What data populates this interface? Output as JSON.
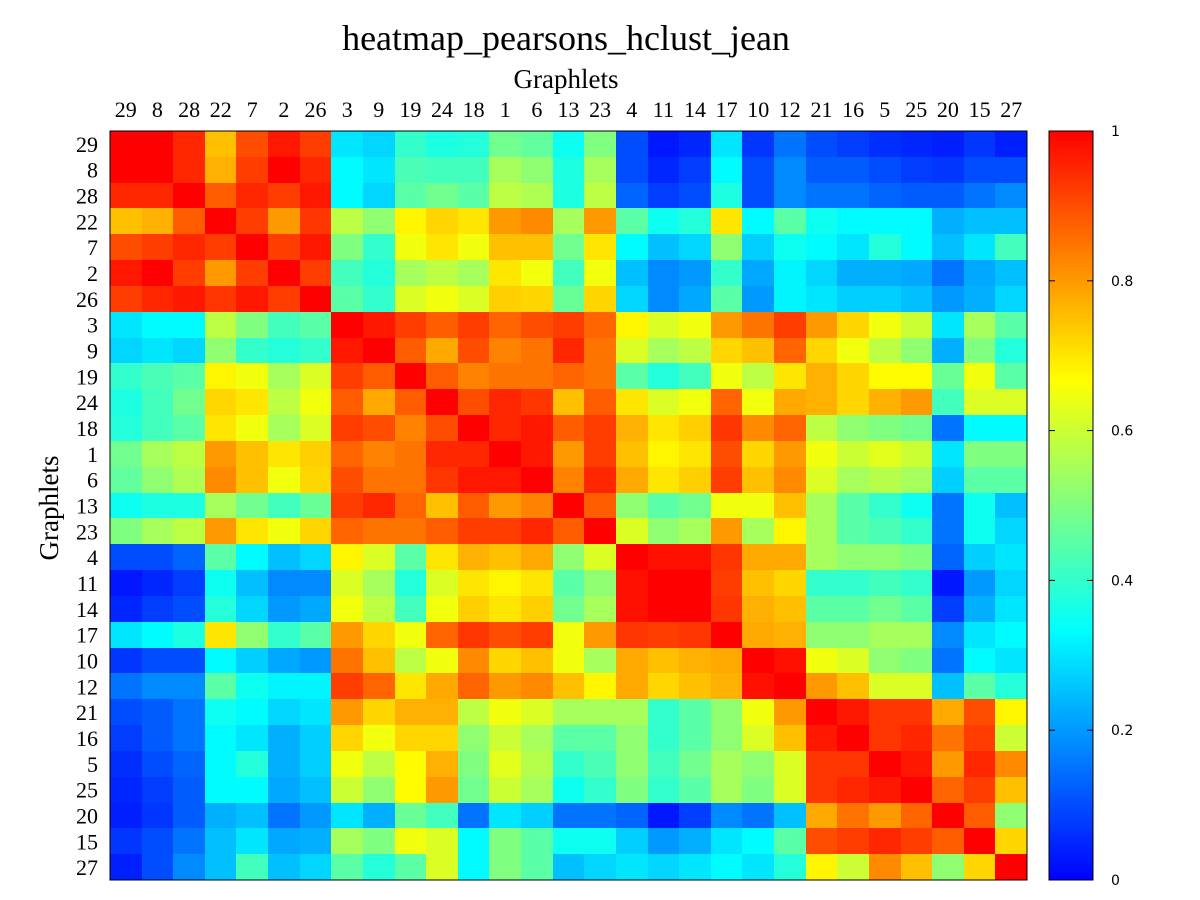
{
  "chart_data": {
    "type": "heatmap",
    "title": "heatmap_pearsons_hclust_jean",
    "xlabel": "Graphlets",
    "ylabel": "Graphlets",
    "labels": [
      "29",
      "8",
      "28",
      "22",
      "7",
      "2",
      "26",
      "3",
      "9",
      "19",
      "24",
      "18",
      "1",
      "6",
      "13",
      "23",
      "4",
      "11",
      "14",
      "17",
      "10",
      "12",
      "21",
      "16",
      "5",
      "25",
      "20",
      "15",
      "27"
    ],
    "colorbar": {
      "min": 0,
      "max": 1,
      "ticks": [
        "0",
        "0.2",
        "0.4",
        "0.6",
        "0.8",
        "1"
      ]
    },
    "colormap": [
      "#0000ff",
      "#0080ff",
      "#00ffff",
      "#80ff80",
      "#ffff00",
      "#ff8000",
      "#ff0000"
    ],
    "values": [
      [
        1.0,
        1.0,
        0.95,
        0.75,
        0.9,
        0.97,
        0.92,
        0.3,
        0.28,
        0.4,
        0.37,
        0.38,
        0.48,
        0.46,
        0.35,
        0.5,
        0.1,
        0.03,
        0.05,
        0.3,
        0.07,
        0.15,
        0.1,
        0.08,
        0.06,
        0.05,
        0.04,
        0.07,
        0.04
      ],
      [
        1.0,
        1.0,
        0.95,
        0.77,
        0.92,
        1.0,
        0.95,
        0.33,
        0.3,
        0.43,
        0.42,
        0.42,
        0.55,
        0.52,
        0.37,
        0.55,
        0.1,
        0.05,
        0.08,
        0.33,
        0.1,
        0.18,
        0.12,
        0.12,
        0.1,
        0.08,
        0.07,
        0.1,
        0.1
      ],
      [
        0.95,
        0.95,
        1.0,
        0.88,
        0.95,
        0.92,
        0.97,
        0.33,
        0.28,
        0.45,
        0.48,
        0.45,
        0.58,
        0.56,
        0.37,
        0.58,
        0.13,
        0.08,
        0.1,
        0.37,
        0.1,
        0.18,
        0.15,
        0.15,
        0.13,
        0.12,
        0.12,
        0.15,
        0.18
      ],
      [
        0.75,
        0.77,
        0.88,
        1.0,
        0.92,
        0.8,
        0.93,
        0.58,
        0.52,
        0.68,
        0.72,
        0.7,
        0.8,
        0.82,
        0.55,
        0.8,
        0.45,
        0.35,
        0.38,
        0.7,
        0.33,
        0.45,
        0.35,
        0.33,
        0.33,
        0.33,
        0.23,
        0.25,
        0.25
      ],
      [
        0.9,
        0.92,
        0.95,
        0.92,
        1.0,
        0.92,
        0.97,
        0.5,
        0.4,
        0.65,
        0.7,
        0.65,
        0.75,
        0.75,
        0.48,
        0.7,
        0.33,
        0.25,
        0.28,
        0.52,
        0.27,
        0.35,
        0.33,
        0.3,
        0.38,
        0.33,
        0.25,
        0.3,
        0.42
      ],
      [
        0.97,
        1.0,
        0.92,
        0.8,
        0.92,
        1.0,
        0.92,
        0.42,
        0.38,
        0.55,
        0.58,
        0.55,
        0.7,
        0.65,
        0.42,
        0.65,
        0.25,
        0.18,
        0.2,
        0.4,
        0.22,
        0.32,
        0.28,
        0.23,
        0.23,
        0.22,
        0.15,
        0.22,
        0.25
      ],
      [
        0.92,
        0.95,
        0.97,
        0.93,
        0.97,
        0.92,
        1.0,
        0.45,
        0.4,
        0.62,
        0.65,
        0.62,
        0.73,
        0.72,
        0.47,
        0.72,
        0.28,
        0.18,
        0.22,
        0.45,
        0.2,
        0.32,
        0.3,
        0.27,
        0.27,
        0.25,
        0.2,
        0.23,
        0.28
      ],
      [
        0.3,
        0.33,
        0.33,
        0.58,
        0.5,
        0.42,
        0.45,
        1.0,
        0.97,
        0.92,
        0.88,
        0.92,
        0.87,
        0.9,
        0.92,
        0.87,
        0.68,
        0.62,
        0.65,
        0.8,
        0.85,
        0.92,
        0.8,
        0.72,
        0.65,
        0.6,
        0.3,
        0.55,
        0.45
      ],
      [
        0.28,
        0.3,
        0.28,
        0.52,
        0.4,
        0.38,
        0.4,
        0.97,
        1.0,
        0.88,
        0.78,
        0.9,
        0.83,
        0.85,
        0.95,
        0.85,
        0.62,
        0.55,
        0.58,
        0.72,
        0.75,
        0.87,
        0.72,
        0.65,
        0.58,
        0.52,
        0.23,
        0.5,
        0.38
      ],
      [
        0.4,
        0.43,
        0.45,
        0.68,
        0.65,
        0.55,
        0.62,
        0.92,
        0.88,
        1.0,
        0.88,
        0.83,
        0.85,
        0.85,
        0.87,
        0.85,
        0.45,
        0.38,
        0.42,
        0.65,
        0.58,
        0.7,
        0.77,
        0.72,
        0.67,
        0.67,
        0.47,
        0.65,
        0.45
      ],
      [
        0.37,
        0.42,
        0.48,
        0.72,
        0.7,
        0.58,
        0.65,
        0.88,
        0.78,
        0.88,
        1.0,
        0.9,
        0.95,
        0.93,
        0.75,
        0.88,
        0.7,
        0.62,
        0.65,
        0.87,
        0.65,
        0.78,
        0.77,
        0.72,
        0.77,
        0.8,
        0.42,
        0.62,
        0.62
      ],
      [
        0.38,
        0.42,
        0.45,
        0.7,
        0.65,
        0.55,
        0.62,
        0.92,
        0.9,
        0.83,
        0.9,
        1.0,
        0.95,
        0.97,
        0.88,
        0.92,
        0.77,
        0.7,
        0.73,
        0.93,
        0.82,
        0.87,
        0.58,
        0.52,
        0.5,
        0.48,
        0.15,
        0.33,
        0.33
      ],
      [
        0.48,
        0.55,
        0.58,
        0.8,
        0.75,
        0.7,
        0.73,
        0.87,
        0.83,
        0.85,
        0.95,
        0.95,
        1.0,
        0.97,
        0.8,
        0.92,
        0.75,
        0.68,
        0.7,
        0.9,
        0.72,
        0.8,
        0.65,
        0.6,
        0.63,
        0.6,
        0.3,
        0.5,
        0.5
      ],
      [
        0.46,
        0.52,
        0.56,
        0.82,
        0.75,
        0.65,
        0.72,
        0.9,
        0.85,
        0.85,
        0.93,
        0.97,
        0.97,
        1.0,
        0.83,
        0.95,
        0.78,
        0.7,
        0.73,
        0.92,
        0.75,
        0.82,
        0.62,
        0.55,
        0.57,
        0.55,
        0.27,
        0.45,
        0.45
      ],
      [
        0.35,
        0.37,
        0.37,
        0.55,
        0.48,
        0.42,
        0.47,
        0.92,
        0.95,
        0.87,
        0.75,
        0.88,
        0.8,
        0.83,
        1.0,
        0.88,
        0.52,
        0.45,
        0.48,
        0.65,
        0.65,
        0.75,
        0.55,
        0.45,
        0.4,
        0.35,
        0.15,
        0.35,
        0.25
      ],
      [
        0.5,
        0.55,
        0.58,
        0.8,
        0.7,
        0.65,
        0.72,
        0.87,
        0.85,
        0.85,
        0.88,
        0.92,
        0.92,
        0.95,
        0.88,
        1.0,
        0.62,
        0.52,
        0.55,
        0.8,
        0.55,
        0.68,
        0.55,
        0.45,
        0.43,
        0.4,
        0.15,
        0.35,
        0.28
      ],
      [
        0.1,
        0.1,
        0.13,
        0.45,
        0.33,
        0.25,
        0.28,
        0.68,
        0.62,
        0.45,
        0.7,
        0.77,
        0.75,
        0.78,
        0.52,
        0.62,
        1.0,
        0.98,
        0.98,
        0.93,
        0.78,
        0.78,
        0.55,
        0.52,
        0.52,
        0.5,
        0.13,
        0.27,
        0.3
      ],
      [
        0.03,
        0.05,
        0.08,
        0.35,
        0.25,
        0.18,
        0.18,
        0.62,
        0.55,
        0.38,
        0.62,
        0.7,
        0.68,
        0.7,
        0.45,
        0.52,
        0.98,
        1.0,
        1.0,
        0.92,
        0.75,
        0.72,
        0.4,
        0.4,
        0.42,
        0.4,
        0.03,
        0.2,
        0.28
      ],
      [
        0.05,
        0.08,
        0.1,
        0.38,
        0.28,
        0.2,
        0.22,
        0.65,
        0.58,
        0.42,
        0.65,
        0.73,
        0.7,
        0.73,
        0.48,
        0.55,
        0.98,
        1.0,
        1.0,
        0.93,
        0.77,
        0.75,
        0.45,
        0.45,
        0.48,
        0.45,
        0.08,
        0.23,
        0.3
      ],
      [
        0.3,
        0.33,
        0.37,
        0.7,
        0.52,
        0.4,
        0.45,
        0.8,
        0.72,
        0.65,
        0.87,
        0.93,
        0.9,
        0.92,
        0.65,
        0.8,
        0.93,
        0.92,
        0.93,
        1.0,
        0.78,
        0.77,
        0.52,
        0.52,
        0.55,
        0.55,
        0.18,
        0.3,
        0.33
      ],
      [
        0.07,
        0.1,
        0.1,
        0.33,
        0.27,
        0.22,
        0.2,
        0.85,
        0.75,
        0.58,
        0.65,
        0.82,
        0.72,
        0.75,
        0.65,
        0.55,
        0.78,
        0.75,
        0.77,
        0.78,
        1.0,
        0.98,
        0.65,
        0.62,
        0.52,
        0.5,
        0.15,
        0.33,
        0.3
      ],
      [
        0.15,
        0.18,
        0.18,
        0.45,
        0.35,
        0.32,
        0.32,
        0.92,
        0.87,
        0.7,
        0.78,
        0.87,
        0.8,
        0.82,
        0.75,
        0.68,
        0.78,
        0.72,
        0.75,
        0.77,
        0.98,
        1.0,
        0.8,
        0.75,
        0.62,
        0.62,
        0.25,
        0.45,
        0.38
      ],
      [
        0.1,
        0.12,
        0.15,
        0.35,
        0.33,
        0.28,
        0.3,
        0.8,
        0.72,
        0.77,
        0.77,
        0.58,
        0.65,
        0.62,
        0.55,
        0.55,
        0.55,
        0.4,
        0.45,
        0.52,
        0.65,
        0.8,
        1.0,
        0.97,
        0.93,
        0.93,
        0.78,
        0.9,
        0.68
      ],
      [
        0.08,
        0.12,
        0.15,
        0.33,
        0.3,
        0.23,
        0.27,
        0.72,
        0.65,
        0.72,
        0.72,
        0.52,
        0.6,
        0.55,
        0.45,
        0.45,
        0.52,
        0.4,
        0.45,
        0.52,
        0.62,
        0.75,
        0.97,
        1.0,
        0.93,
        0.95,
        0.85,
        0.92,
        0.6
      ],
      [
        0.06,
        0.1,
        0.13,
        0.33,
        0.38,
        0.23,
        0.27,
        0.65,
        0.58,
        0.67,
        0.77,
        0.5,
        0.63,
        0.57,
        0.4,
        0.43,
        0.52,
        0.42,
        0.48,
        0.55,
        0.52,
        0.62,
        0.93,
        0.93,
        1.0,
        0.97,
        0.8,
        0.95,
        0.82
      ],
      [
        0.05,
        0.08,
        0.12,
        0.33,
        0.33,
        0.22,
        0.25,
        0.6,
        0.52,
        0.67,
        0.8,
        0.48,
        0.6,
        0.55,
        0.35,
        0.4,
        0.5,
        0.4,
        0.45,
        0.55,
        0.5,
        0.62,
        0.93,
        0.95,
        0.97,
        1.0,
        0.87,
        0.92,
        0.75
      ],
      [
        0.04,
        0.07,
        0.12,
        0.23,
        0.25,
        0.15,
        0.2,
        0.3,
        0.23,
        0.47,
        0.42,
        0.15,
        0.3,
        0.27,
        0.15,
        0.15,
        0.13,
        0.03,
        0.08,
        0.18,
        0.15,
        0.25,
        0.78,
        0.85,
        0.8,
        0.87,
        1.0,
        0.88,
        0.52
      ],
      [
        0.07,
        0.1,
        0.15,
        0.25,
        0.3,
        0.22,
        0.23,
        0.55,
        0.5,
        0.65,
        0.62,
        0.33,
        0.5,
        0.45,
        0.35,
        0.35,
        0.27,
        0.2,
        0.23,
        0.3,
        0.33,
        0.45,
        0.9,
        0.92,
        0.95,
        0.92,
        0.88,
        1.0,
        0.72
      ],
      [
        0.04,
        0.1,
        0.18,
        0.25,
        0.42,
        0.25,
        0.28,
        0.45,
        0.38,
        0.45,
        0.62,
        0.33,
        0.5,
        0.45,
        0.25,
        0.28,
        0.3,
        0.28,
        0.3,
        0.33,
        0.3,
        0.38,
        0.68,
        0.6,
        0.82,
        0.75,
        0.52,
        0.72,
        1.0
      ]
    ]
  }
}
